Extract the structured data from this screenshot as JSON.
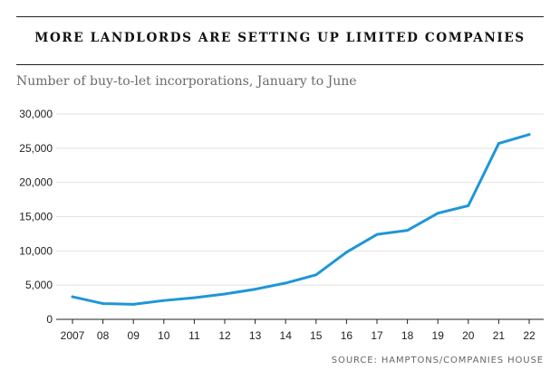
{
  "chart_data": {
    "type": "line",
    "title": "MORE LANDLORDS ARE SETTING UP LIMITED COMPANIES",
    "subtitle": "Number of buy-to-let incorporations, January to June",
    "source": "SOURCE: HAMPTONS/COMPANIES HOUSE",
    "xlabel": "",
    "ylabel": "",
    "categories": [
      "2007",
      "08",
      "09",
      "10",
      "11",
      "12",
      "13",
      "14",
      "15",
      "16",
      "17",
      "18",
      "19",
      "20",
      "21",
      "22"
    ],
    "series": [
      {
        "values": [
          3300,
          2300,
          2200,
          2750,
          3150,
          3700,
          4400,
          5300,
          6500,
          9800,
          12400,
          13000,
          15500,
          16600,
          25700,
          27000
        ]
      }
    ],
    "ylim": [
      0,
      30000
    ],
    "yticks": [
      0,
      5000,
      10000,
      15000,
      20000,
      25000,
      30000
    ],
    "ytick_labels": [
      "0",
      "5,000",
      "10,000",
      "15,000",
      "20,000",
      "25,000",
      "30,000"
    ],
    "grid": true,
    "legend": "none",
    "line_color": "#1f96d8"
  }
}
